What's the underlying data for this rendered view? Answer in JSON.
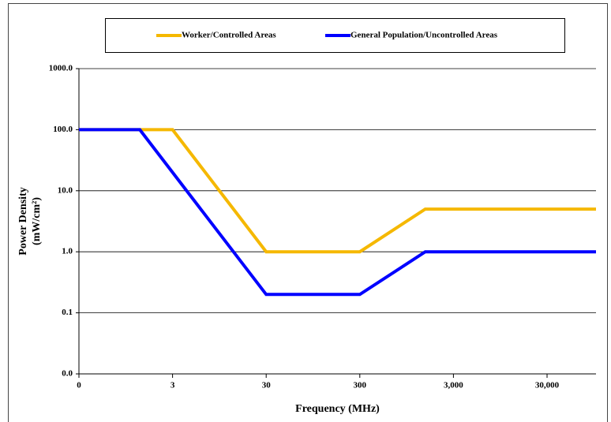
{
  "chart_data": {
    "type": "line",
    "x_label": "Frequency (MHz)",
    "y_label_lines": [
      "Power Density",
      "(mW/cm²)"
    ],
    "log_x": true,
    "log_y": true,
    "grid": true,
    "xlim": [
      0.3,
      100000
    ],
    "xticks": [
      {
        "value": 0.3,
        "label": "0"
      },
      3,
      30,
      300,
      {
        "value": 3000,
        "label": "3,000"
      },
      {
        "value": 30000,
        "label": "30,000"
      }
    ],
    "ylim": [
      0.01,
      1000
    ],
    "yticks": [
      {
        "value": 0.01,
        "label": "0.0"
      },
      {
        "value": 0.1,
        "label": "0.1"
      },
      {
        "value": 1,
        "label": "1.0"
      },
      {
        "value": 10,
        "label": "10.0"
      },
      {
        "value": 100,
        "label": "100.0"
      },
      {
        "value": 1000,
        "label": "1000.0"
      }
    ],
    "legend": "top",
    "series": [
      {
        "name": "Worker/Controlled Areas",
        "color": "#f5b800",
        "x": [
          0.3,
          3,
          30,
          300,
          1500,
          100000
        ],
        "values": [
          100,
          100,
          1,
          1,
          5,
          5
        ]
      },
      {
        "name": "General Population/Uncontrolled Areas",
        "color": "#0000ff",
        "x": [
          0.3,
          1.34,
          30,
          300,
          1500,
          100000
        ],
        "values": [
          100,
          100,
          0.2,
          0.2,
          1,
          1
        ]
      }
    ]
  }
}
